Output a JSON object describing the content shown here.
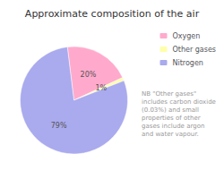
{
  "chart_data": {
    "type": "pie",
    "title": "Approximate composition of the air",
    "categories": [
      "Oxygen",
      "Other gases",
      "Nitrogen"
    ],
    "values": [
      20,
      1,
      79
    ],
    "value_labels": [
      "20%",
      "1%",
      "79%"
    ],
    "colors": [
      "#ffaacc",
      "#ffffaa",
      "#aaaaee"
    ],
    "data_labels": true,
    "legend": "upper right",
    "annotations": [
      "NB \"Other gases\"\nincludes carbon dioxide\n(0.03%) and small\nproperties of other\ngases include argon\nand water vapour."
    ]
  }
}
